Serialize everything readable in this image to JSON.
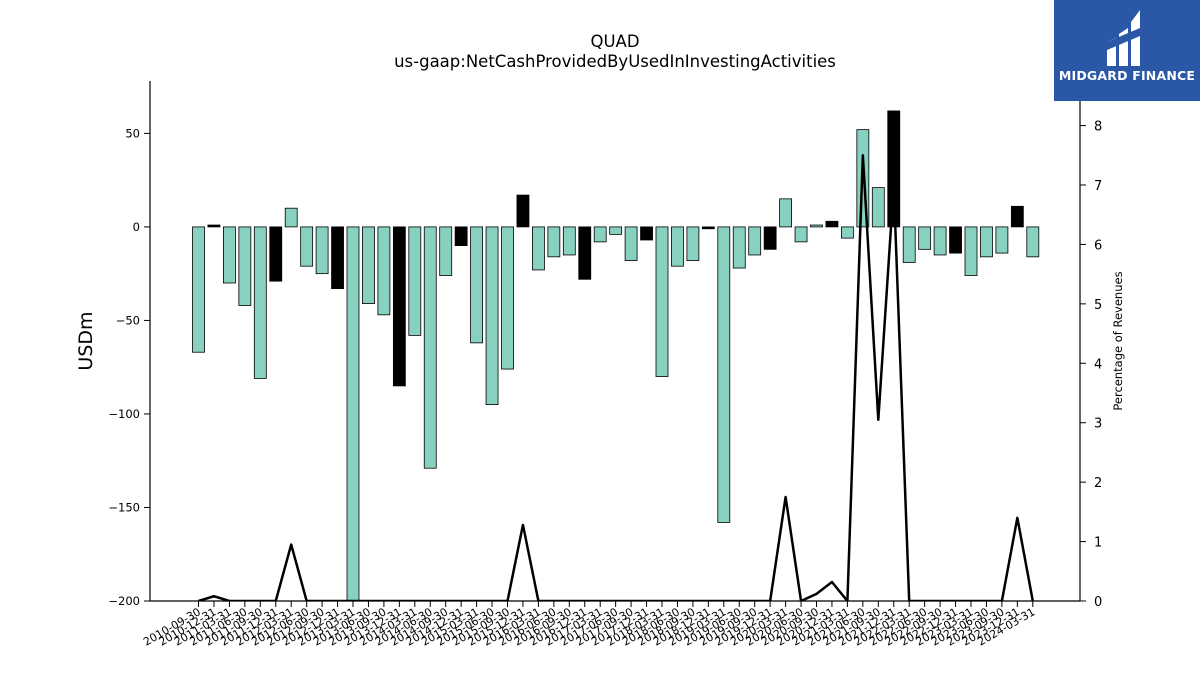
{
  "chart_data": {
    "type": "bar",
    "title": "QUAD",
    "subtitle": "us-gaap:NetCashProvidedByUsedInInvestingActivities",
    "ylabel": "USDm",
    "y2label": "Percentage of Revenues",
    "ylim": [
      -200,
      78
    ],
    "y2lim": [
      0,
      8.75
    ],
    "yticks": [
      50,
      0,
      -50,
      -100,
      -150,
      -200
    ],
    "y2ticks": [
      0,
      1,
      2,
      3,
      4,
      5,
      6,
      7,
      8
    ],
    "grid": false,
    "categories": [
      "2010-09-30",
      "2010-12-31",
      "2011-03-31",
      "2011-06-30",
      "2011-09-30",
      "2011-12-31",
      "2012-03-31",
      "2012-06-30",
      "2012-09-30",
      "2012-12-31",
      "2013-03-31",
      "2013-06-30",
      "2013-09-30",
      "2013-12-31",
      "2014-03-31",
      "2014-06-30",
      "2014-09-30",
      "2014-12-31",
      "2015-03-31",
      "2015-06-30",
      "2015-09-30",
      "2015-12-31",
      "2016-03-31",
      "2016-06-30",
      "2016-09-30",
      "2016-12-31",
      "2017-03-31",
      "2017-06-30",
      "2017-09-30",
      "2017-12-31",
      "2018-03-31",
      "2018-06-30",
      "2018-09-30",
      "2018-12-31",
      "2019-03-31",
      "2019-06-30",
      "2019-09-30",
      "2019-12-31",
      "2020-03-31",
      "2020-06-30",
      "2020-09-30",
      "2020-12-31",
      "2021-03-31",
      "2021-06-30",
      "2021-09-30",
      "2021-12-31",
      "2022-03-31",
      "2022-06-30",
      "2022-09-30",
      "2022-12-31",
      "2023-03-31",
      "2023-06-30",
      "2023-09-30",
      "2023-12-31",
      "2024-03-31"
    ],
    "values": [
      -67,
      1,
      -30,
      -42,
      -81,
      -29,
      10,
      -21,
      -25,
      -33,
      -200,
      -41,
      -47,
      -85,
      -58,
      -129,
      -26,
      -10,
      -62,
      -95,
      -76,
      17,
      -23,
      -16,
      -15,
      -28,
      -8,
      -4,
      -18,
      -7,
      -80,
      -21,
      -18,
      -1,
      -158,
      -22,
      -15,
      -12,
      15,
      -8,
      1,
      3,
      -6,
      52,
      21,
      62,
      -19,
      -12,
      -15,
      -14,
      -26,
      -16,
      -14,
      11,
      -16
    ],
    "colors": {
      "positive_growth": "#000000",
      "default": "#88d1c1",
      "line": "#000000"
    },
    "percent_of_revenues": [
      0,
      0.08,
      0,
      0,
      0,
      0,
      0.95,
      0,
      0,
      0,
      0,
      0,
      0,
      0,
      0,
      0,
      0,
      0,
      0,
      0,
      0,
      1.28,
      0,
      0,
      0,
      0,
      0,
      0,
      0,
      0,
      0,
      0,
      0,
      0,
      0,
      0,
      0,
      0,
      1.75,
      0,
      0.12,
      0.32,
      0,
      7.5,
      3.05,
      7.0,
      0,
      0,
      0,
      0,
      0,
      0,
      0,
      1.4,
      0
    ]
  },
  "watermark": {
    "text": "MIDGARD FINANCE",
    "color": "#2a57a6"
  }
}
